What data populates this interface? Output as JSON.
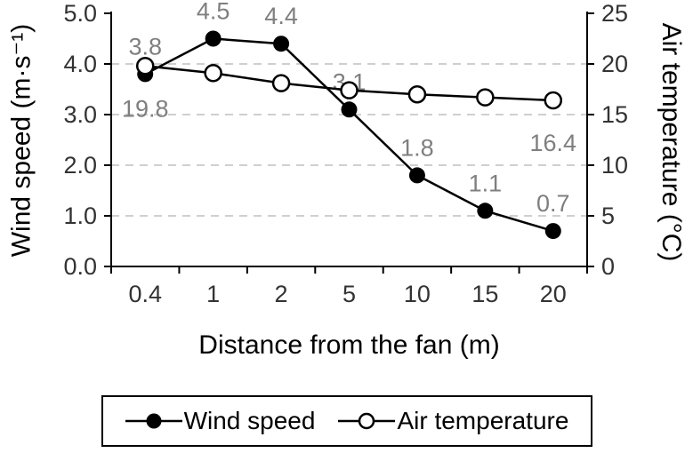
{
  "chart_data": {
    "type": "line",
    "title": "",
    "categories": [
      "0.4",
      "1",
      "2",
      "5",
      "10",
      "15",
      "20"
    ],
    "series": [
      {
        "name": "Wind speed",
        "axis": "left",
        "marker": "filled-circle",
        "values": [
          3.8,
          4.5,
          4.4,
          3.1,
          1.8,
          1.1,
          0.7
        ],
        "labels": [
          "3.8",
          "4.5",
          "4.4",
          "3.1",
          "1.8",
          "1.1",
          "0.7"
        ],
        "label_position": "above"
      },
      {
        "name": "Air temperature",
        "axis": "right",
        "marker": "open-circle",
        "values": [
          19.8,
          19.1,
          18.1,
          17.4,
          17.0,
          16.7,
          16.4
        ],
        "labels": [
          "19.8",
          "",
          "",
          "",
          "",
          "",
          "16.4"
        ],
        "label_position": "below"
      }
    ],
    "xlabel": "Distance from the fan (m)",
    "ylabel_left": "Wind speed (m·s⁻¹)",
    "ylabel_right": "Air temperature (°C)",
    "left_axis": {
      "min": 0,
      "max": 5,
      "tick_values": [
        0,
        1,
        2,
        3,
        4,
        5
      ],
      "ticks": [
        "0.0",
        "1.0",
        "2.0",
        "3.0",
        "4.0",
        "5.0"
      ]
    },
    "right_axis": {
      "min": 0,
      "max": 25,
      "tick_values": [
        0,
        5,
        10,
        15,
        20,
        25
      ],
      "ticks": [
        "0",
        "5",
        "10",
        "15",
        "20",
        "25"
      ]
    },
    "gridline_values": [
      1,
      2,
      3,
      4
    ],
    "grid": "dashed horizontal",
    "legend_position": "bottom",
    "colors": {
      "series": "#000000",
      "data_labels": "#7f7f7f",
      "gridlines": "#bfbfbf"
    }
  }
}
